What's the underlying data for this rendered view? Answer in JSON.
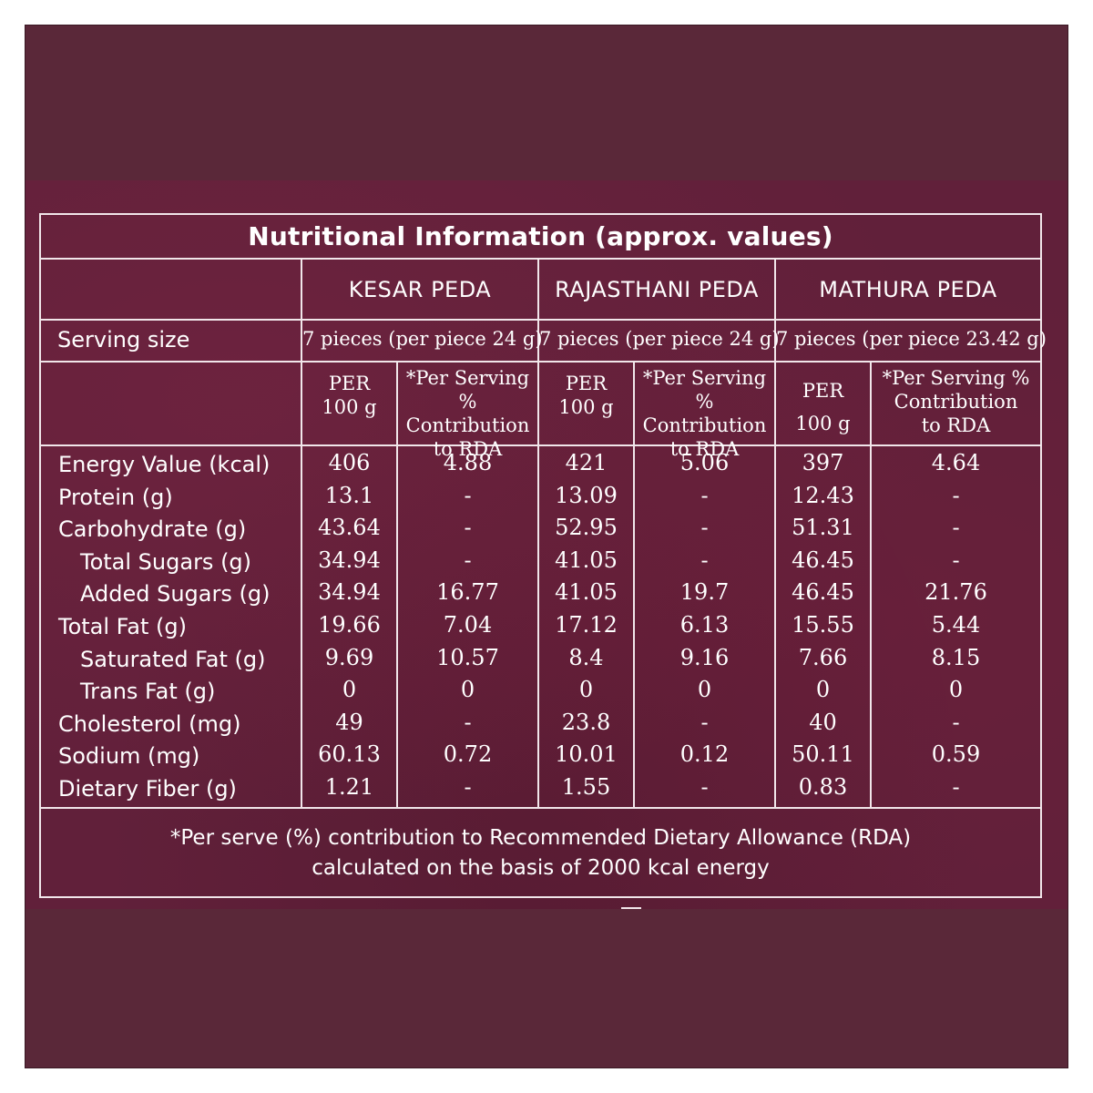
{
  "title": "Nutritional Information (approx. values)",
  "products": [
    "KESAR PEDA",
    "RAJASTHANI PEDA",
    "MATHURA PEDA"
  ],
  "serving_label": "Serving size",
  "serving": [
    "7 pieces (per piece 24 g)",
    "7 pieces (per piece 24 g)",
    "7 pieces (per piece 23.42 g)"
  ],
  "subheads": {
    "per100_a": "PER",
    "per100_b": "100 g",
    "rda_a": "*Per Serving %",
    "rda_b": "Contribution",
    "rda_c": "to RDA"
  },
  "rows": [
    {
      "label": "Energy Value (kcal)",
      "v": [
        "406",
        "4.88",
        "421",
        "5.06",
        "397",
        "4.64"
      ]
    },
    {
      "label": "Protein (g)",
      "v": [
        "13.1",
        "-",
        "13.09",
        "-",
        "12.43",
        "-"
      ]
    },
    {
      "label": "Carbohydrate (g)",
      "v": [
        "43.64",
        "-",
        "52.95",
        "-",
        "51.31",
        "-"
      ]
    },
    {
      "label": "Total Sugars (g)",
      "v": [
        "34.94",
        "-",
        "41.05",
        "-",
        "46.45",
        "-"
      ]
    },
    {
      "label": "Added Sugars (g)",
      "v": [
        "34.94",
        "16.77",
        "41.05",
        "19.7",
        "46.45",
        "21.76"
      ]
    },
    {
      "label": "Total Fat (g)",
      "v": [
        "19.66",
        "7.04",
        "17.12",
        "6.13",
        "15.55",
        "5.44"
      ]
    },
    {
      "label": "Saturated Fat (g)",
      "v": [
        "9.69",
        "10.57",
        "8.4",
        "9.16",
        "7.66",
        "8.15"
      ]
    },
    {
      "label": "Trans Fat (g)",
      "v": [
        "0",
        "0",
        "0",
        "0",
        "0",
        "0"
      ]
    },
    {
      "label": "Cholesterol (mg)",
      "v": [
        "49",
        "-",
        "23.8",
        "-",
        "40",
        "-"
      ]
    },
    {
      "label": "Sodium (mg)",
      "v": [
        "60.13",
        "0.72",
        "10.01",
        "0.12",
        "50.11",
        "0.59"
      ]
    },
    {
      "label": "Dietary Fiber (g)",
      "v": [
        "1.21",
        "-",
        "1.55",
        "-",
        "0.83",
        "-"
      ]
    }
  ],
  "footnote": [
    "*Per serve (%) contribution to Recommended Dietary Allowance (RDA)",
    "calculated on the basis of 2000 kcal energy"
  ],
  "colors": {
    "background": "#5a2839",
    "lines": "#f1e6ea"
  }
}
